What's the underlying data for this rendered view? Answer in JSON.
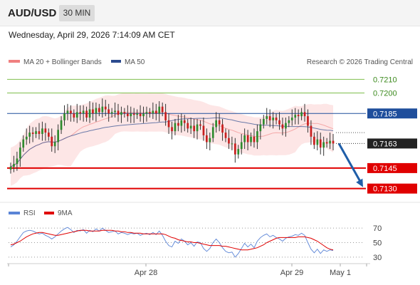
{
  "header": {
    "symbol": "AUD/USD",
    "timeframe": "30 MIN"
  },
  "timestamp": "Wednesday, April 29, 2026 7:14:09 AM CET",
  "copyright": "Research © 2026 Trading Central",
  "colors": {
    "bollinger": "#f08080",
    "ma50": "#2c4b8f",
    "candle_up": "#2e8b2e",
    "candle_down": "#c81e1e",
    "resistance": "#7fbf4d",
    "pivot": "#1f4e9c",
    "support": "#e00000",
    "arrow": "#1f5ea8",
    "rsi": "#5a84d6",
    "rsi_ma": "#e00000",
    "band_fill": "#fde2e2"
  },
  "chart_data": [
    {
      "type": "candlestick",
      "title": "",
      "legend": [
        "MA 20 + Bollinger Bands",
        "MA 50"
      ],
      "legend_position": "top-left",
      "ylim": [
        0.7122,
        0.7218
      ],
      "x_ticks": [
        "Apr 28",
        "Apr 29",
        "May 1"
      ],
      "levels": [
        {
          "label": "0.7210",
          "value": 0.721,
          "kind": "resistance"
        },
        {
          "label": "0.7200",
          "value": 0.72,
          "kind": "resistance"
        },
        {
          "label": "0.7185",
          "value": 0.7185,
          "kind": "pivot"
        },
        {
          "label": "0.7163",
          "value": 0.7163,
          "kind": "last"
        },
        {
          "label": "0.7145",
          "value": 0.7145,
          "kind": "support"
        },
        {
          "label": "0.7130",
          "value": 0.713,
          "kind": "support"
        }
      ],
      "close": [
        0.7146,
        0.7148,
        0.7152,
        0.716,
        0.7166,
        0.7168,
        0.7171,
        0.717,
        0.7172,
        0.717,
        0.7174,
        0.7171,
        0.7168,
        0.7161,
        0.7164,
        0.7173,
        0.718,
        0.7185,
        0.7187,
        0.7185,
        0.7182,
        0.7186,
        0.7185,
        0.7187,
        0.7182,
        0.7188,
        0.7185,
        0.7189,
        0.7186,
        0.719,
        0.7188,
        0.7185,
        0.7186,
        0.7187,
        0.7184,
        0.7186,
        0.7185,
        0.7183,
        0.7185,
        0.7184,
        0.7185,
        0.7183,
        0.7185,
        0.7186,
        0.7185,
        0.7187,
        0.7185,
        0.719,
        0.7186,
        0.718,
        0.7175,
        0.7172,
        0.7178,
        0.7176,
        0.718,
        0.7178,
        0.7174,
        0.7176,
        0.7172,
        0.7177,
        0.7176,
        0.7169,
        0.7164,
        0.7167,
        0.7175,
        0.718,
        0.7177,
        0.7171,
        0.7167,
        0.7163,
        0.7163,
        0.7155,
        0.7159,
        0.7164,
        0.7169,
        0.7164,
        0.7168,
        0.7164,
        0.7172,
        0.7177,
        0.7181,
        0.7183,
        0.718,
        0.7182,
        0.718,
        0.7177,
        0.7174,
        0.7178,
        0.718,
        0.7182,
        0.7184,
        0.7183,
        0.7186,
        0.7183,
        0.7176,
        0.7168,
        0.7162,
        0.7166,
        0.716,
        0.7164,
        0.7163,
        0.7165,
        0.7163
      ],
      "last_price": 0.7163
    },
    {
      "type": "line",
      "title": "",
      "legend": [
        "RSI",
        "9MA"
      ],
      "legend_position": "top-left",
      "ylim": [
        25,
        78
      ],
      "y_ticks": [
        70,
        50,
        30
      ],
      "series": [
        {
          "name": "RSI",
          "values": [
            44,
            47,
            52,
            58,
            64,
            66,
            67,
            66,
            64,
            62,
            63,
            60,
            58,
            55,
            58,
            62,
            66,
            69,
            71,
            68,
            64,
            67,
            66,
            68,
            63,
            67,
            65,
            69,
            66,
            70,
            67,
            64,
            65,
            66,
            62,
            64,
            63,
            61,
            63,
            62,
            63,
            60,
            62,
            63,
            61,
            64,
            61,
            66,
            60,
            52,
            46,
            44,
            52,
            49,
            55,
            52,
            47,
            50,
            45,
            51,
            50,
            42,
            38,
            42,
            50,
            55,
            50,
            43,
            38,
            36,
            37,
            30,
            35,
            42,
            49,
            44,
            48,
            43,
            52,
            57,
            60,
            62,
            58,
            60,
            57,
            55,
            52,
            56,
            58,
            59,
            61,
            60,
            63,
            60,
            50,
            41,
            36,
            41,
            35,
            40,
            38,
            40,
            39
          ]
        },
        {
          "name": "9MA",
          "values": [
            47,
            48,
            50,
            52,
            55,
            58,
            60,
            62,
            63,
            64,
            64,
            63,
            62,
            61,
            60,
            60,
            61,
            62,
            63,
            64,
            65,
            66,
            67,
            67,
            67,
            66,
            66,
            66,
            66,
            67,
            67,
            67,
            67,
            66,
            66,
            65,
            65,
            64,
            64,
            63,
            63,
            63,
            62,
            62,
            62,
            62,
            62,
            62,
            62,
            61,
            59,
            57,
            56,
            54,
            53,
            52,
            51,
            51,
            50,
            50,
            49,
            48,
            47,
            46,
            46,
            46,
            46,
            45,
            45,
            44,
            43,
            42,
            41,
            40,
            40,
            40,
            41,
            42,
            43,
            45,
            47,
            50,
            52,
            54,
            56,
            57,
            57,
            57,
            57,
            57,
            57,
            58,
            58,
            58,
            57,
            56,
            54,
            52,
            49,
            46,
            43,
            41,
            40
          ]
        }
      ]
    }
  ]
}
